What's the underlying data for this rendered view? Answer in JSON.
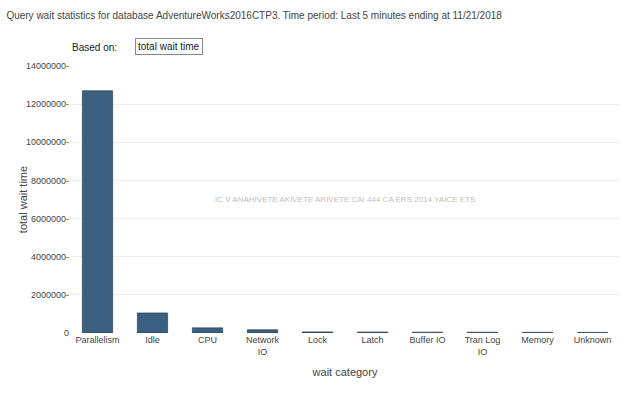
{
  "chart_data": {
    "type": "bar",
    "title": "Query wait statistics for database AdventureWorks2016CTP3. Time period: Last 5 minutes ending at 11/21/2018",
    "annotations": [
      "Based on:",
      "total wait time",
      "IC V ANAHIVETE AKIVETE ARIVETE CAI 444 CA ERS 2014 YAICE ETS"
    ],
    "categories": [
      "Parallelism",
      "Idle",
      "CPU",
      "Network\nIO",
      "Lock",
      "Latch",
      "Buffer IO",
      "Tran Log\nIO",
      "Memory",
      "Unknown"
    ],
    "values": [
      12700000,
      1050000,
      270000,
      170000,
      55000,
      50000,
      42000,
      40000,
      35000,
      30000
    ],
    "color": "#3a5f80",
    "xlabel": "wait category",
    "ylabel": "total wait time",
    "ylim": [
      0,
      14000000
    ],
    "yticks": [
      0,
      {
        "value": 2000000,
        "label": "2000000-"
      },
      {
        "value": 4000000,
        "label": "4000000-"
      },
      {
        "value": 6000000,
        "label": "6000000-"
      },
      {
        "value": 8000000,
        "label": "8000000-"
      },
      {
        "value": 10000000,
        "label": "10000000-"
      },
      {
        "value": 12000000,
        "label": "12000000-"
      },
      {
        "value": 14000000,
        "label": "14000000-"
      }
    ],
    "grid": true
  }
}
